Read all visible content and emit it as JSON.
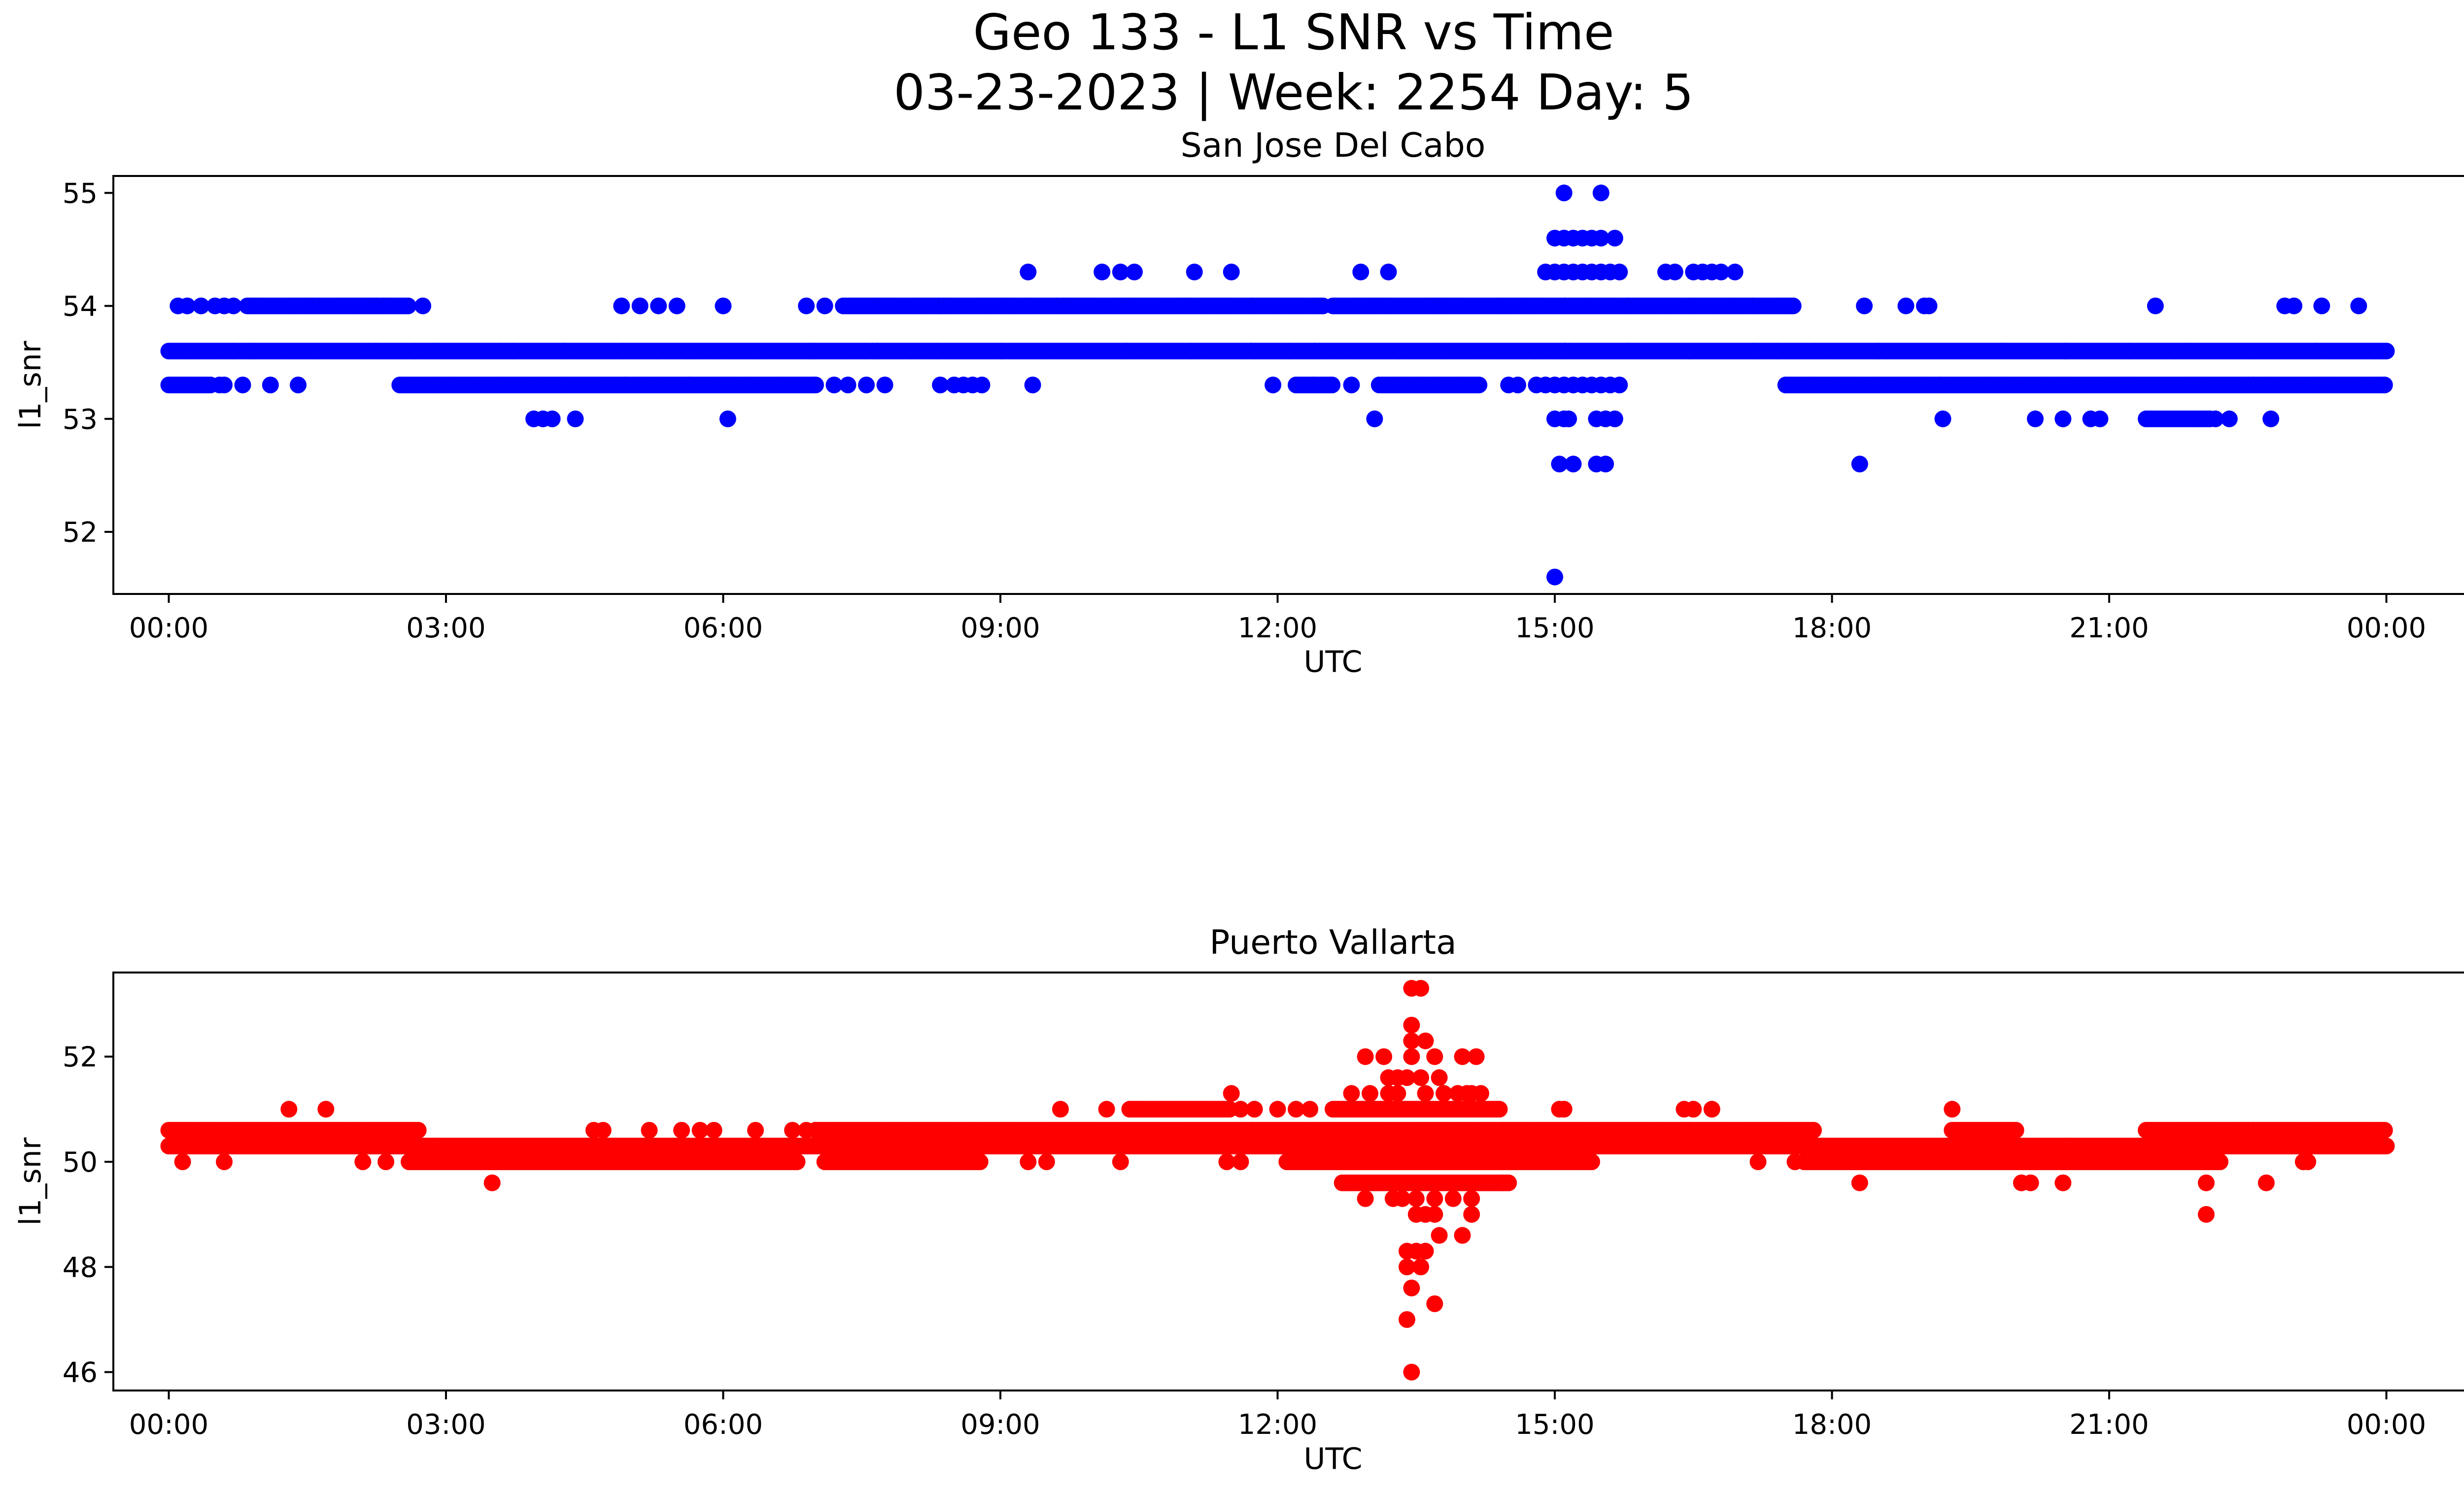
{
  "figure": {
    "title_line1": "Geo 133 - L1 SNR vs Time",
    "title_line2": "03-23-2023 | Week: 2254 Day: 5"
  },
  "chart_data": [
    {
      "type": "scatter",
      "title": "San Jose Del Cabo",
      "xlabel": "UTC",
      "ylabel": "l1_snr",
      "color": "#0000ff",
      "x_ticks": [
        "00:00",
        "03:00",
        "06:00",
        "09:00",
        "12:00",
        "15:00",
        "18:00",
        "21:00",
        "00:00"
      ],
      "x_range_hours": [
        -0.6,
        25.8
      ],
      "ylim": [
        51.45,
        55.15
      ],
      "y_ticks": [
        52,
        53,
        54,
        55
      ],
      "grid": false,
      "series": [
        {
          "bands": [
            {
              "y": 53.6,
              "x_start": 0.0,
              "x_end": 24.0
            },
            {
              "y": 53.3,
              "x_start": 0.0,
              "x_end": 0.45
            },
            {
              "y": 53.3,
              "x_start": 2.5,
              "x_end": 7.0
            },
            {
              "y": 53.3,
              "x_start": 12.2,
              "x_end": 12.6
            },
            {
              "y": 53.3,
              "x_start": 13.1,
              "x_end": 14.2
            },
            {
              "y": 53.3,
              "x_start": 17.5,
              "x_end": 24.0
            },
            {
              "y": 54.0,
              "x_start": 0.85,
              "x_end": 2.6
            },
            {
              "y": 54.0,
              "x_start": 7.3,
              "x_end": 12.5
            },
            {
              "y": 54.0,
              "x_start": 12.6,
              "x_end": 17.6
            },
            {
              "y": 53.0,
              "x_start": 21.4,
              "x_end": 22.1
            }
          ],
          "points": [
            [
              0.1,
              54.0
            ],
            [
              0.2,
              54.0
            ],
            [
              0.35,
              54.0
            ],
            [
              0.5,
              54.0
            ],
            [
              0.6,
              54.0
            ],
            [
              0.7,
              54.0
            ],
            [
              2.75,
              54.0
            ],
            [
              4.9,
              54.0
            ],
            [
              5.1,
              54.0
            ],
            [
              5.3,
              54.0
            ],
            [
              5.5,
              54.0
            ],
            [
              6.0,
              54.0
            ],
            [
              6.9,
              54.0
            ],
            [
              7.1,
              54.0
            ],
            [
              9.3,
              54.3
            ],
            [
              10.1,
              54.3
            ],
            [
              10.3,
              54.3
            ],
            [
              10.45,
              54.3
            ],
            [
              11.1,
              54.3
            ],
            [
              11.5,
              54.3
            ],
            [
              12.9,
              54.3
            ],
            [
              13.2,
              54.3
            ],
            [
              16.2,
              54.3
            ],
            [
              16.3,
              54.3
            ],
            [
              16.5,
              54.3
            ],
            [
              16.6,
              54.3
            ],
            [
              16.7,
              54.3
            ],
            [
              16.8,
              54.3
            ],
            [
              16.95,
              54.3
            ],
            [
              18.35,
              54.0
            ],
            [
              18.8,
              54.0
            ],
            [
              19.0,
              54.0
            ],
            [
              19.05,
              54.0
            ],
            [
              21.5,
              54.0
            ],
            [
              22.9,
              54.0
            ],
            [
              23.0,
              54.0
            ],
            [
              23.3,
              54.0
            ],
            [
              23.7,
              54.0
            ],
            [
              0.55,
              53.3
            ],
            [
              0.6,
              53.3
            ],
            [
              0.8,
              53.3
            ],
            [
              1.1,
              53.3
            ],
            [
              1.4,
              53.3
            ],
            [
              7.2,
              53.3
            ],
            [
              7.35,
              53.3
            ],
            [
              7.55,
              53.3
            ],
            [
              7.75,
              53.3
            ],
            [
              8.35,
              53.3
            ],
            [
              8.5,
              53.3
            ],
            [
              8.6,
              53.3
            ],
            [
              8.7,
              53.3
            ],
            [
              8.8,
              53.3
            ],
            [
              9.35,
              53.3
            ],
            [
              11.95,
              53.3
            ],
            [
              12.8,
              53.3
            ],
            [
              14.5,
              53.3
            ],
            [
              14.6,
              53.3
            ],
            [
              14.8,
              53.3
            ],
            [
              3.95,
              53.0
            ],
            [
              4.05,
              53.0
            ],
            [
              4.15,
              53.0
            ],
            [
              4.4,
              53.0
            ],
            [
              6.05,
              53.0
            ],
            [
              13.05,
              53.0
            ],
            [
              14.9,
              53.3
            ],
            [
              15.0,
              53.3
            ],
            [
              15.1,
              53.3
            ],
            [
              15.2,
              53.3
            ],
            [
              15.3,
              53.3
            ],
            [
              15.4,
              53.3
            ],
            [
              15.5,
              53.3
            ],
            [
              15.6,
              53.3
            ],
            [
              15.7,
              53.3
            ],
            [
              15.0,
              53.0
            ],
            [
              15.1,
              53.0
            ],
            [
              15.15,
              53.0
            ],
            [
              15.45,
              53.0
            ],
            [
              15.55,
              53.0
            ],
            [
              15.65,
              53.0
            ],
            [
              15.05,
              52.6
            ],
            [
              15.2,
              52.6
            ],
            [
              15.45,
              52.6
            ],
            [
              15.55,
              52.6
            ],
            [
              15.0,
              51.6
            ],
            [
              14.9,
              54.3
            ],
            [
              15.0,
              54.3
            ],
            [
              15.1,
              54.3
            ],
            [
              15.2,
              54.3
            ],
            [
              15.3,
              54.3
            ],
            [
              15.4,
              54.3
            ],
            [
              15.5,
              54.3
            ],
            [
              15.6,
              54.3
            ],
            [
              15.7,
              54.3
            ],
            [
              15.0,
              54.6
            ],
            [
              15.1,
              54.6
            ],
            [
              15.2,
              54.6
            ],
            [
              15.3,
              54.6
            ],
            [
              15.4,
              54.6
            ],
            [
              15.5,
              54.6
            ],
            [
              15.65,
              54.6
            ],
            [
              15.1,
              55.0
            ],
            [
              15.5,
              55.0
            ],
            [
              18.3,
              52.6
            ],
            [
              19.2,
              53.0
            ],
            [
              20.2,
              53.0
            ],
            [
              20.5,
              53.0
            ],
            [
              20.8,
              53.0
            ],
            [
              20.9,
              53.0
            ],
            [
              22.15,
              53.0
            ],
            [
              22.3,
              53.0
            ],
            [
              22.75,
              53.0
            ]
          ]
        }
      ]
    },
    {
      "type": "scatter",
      "title": "Puerto Vallarta",
      "xlabel": "UTC",
      "ylabel": "l1_snr",
      "color": "#ff0000",
      "x_ticks": [
        "00:00",
        "03:00",
        "06:00",
        "09:00",
        "12:00",
        "15:00",
        "18:00",
        "21:00",
        "00:00"
      ],
      "x_range_hours": [
        -0.6,
        25.8
      ],
      "ylim": [
        45.65,
        53.6
      ],
      "y_ticks": [
        46,
        48,
        50,
        52
      ],
      "grid": false,
      "series": [
        {
          "bands": [
            {
              "y": 50.6,
              "x_start": 0.0,
              "x_end": 2.7
            },
            {
              "y": 50.3,
              "x_start": 0.0,
              "x_end": 24.0
            },
            {
              "y": 50.0,
              "x_start": 2.6,
              "x_end": 6.8
            },
            {
              "y": 50.6,
              "x_start": 7.0,
              "x_end": 17.8
            },
            {
              "y": 50.0,
              "x_start": 7.1,
              "x_end": 8.8
            },
            {
              "y": 50.0,
              "x_start": 12.1,
              "x_end": 15.4
            },
            {
              "y": 50.0,
              "x_start": 17.7,
              "x_end": 22.2
            },
            {
              "y": 50.6,
              "x_start": 19.3,
              "x_end": 20.0
            },
            {
              "y": 50.6,
              "x_start": 21.4,
              "x_end": 24.0
            },
            {
              "y": 51.0,
              "x_start": 10.4,
              "x_end": 11.5
            },
            {
              "y": 51.0,
              "x_start": 12.6,
              "x_end": 14.4
            },
            {
              "y": 49.6,
              "x_start": 12.7,
              "x_end": 14.5
            }
          ],
          "points": [
            [
              0.15,
              50.0
            ],
            [
              0.6,
              50.0
            ],
            [
              1.3,
              51.0
            ],
            [
              1.7,
              51.0
            ],
            [
              2.1,
              50.0
            ],
            [
              2.35,
              50.0
            ],
            [
              3.5,
              49.6
            ],
            [
              4.6,
              50.6
            ],
            [
              4.7,
              50.6
            ],
            [
              5.2,
              50.6
            ],
            [
              5.55,
              50.6
            ],
            [
              5.75,
              50.6
            ],
            [
              5.9,
              50.6
            ],
            [
              6.35,
              50.6
            ],
            [
              6.75,
              50.6
            ],
            [
              6.9,
              50.6
            ],
            [
              9.3,
              50.0
            ],
            [
              9.5,
              50.0
            ],
            [
              9.65,
              51.0
            ],
            [
              10.15,
              51.0
            ],
            [
              10.3,
              50.0
            ],
            [
              11.5,
              51.3
            ],
            [
              11.6,
              51.0
            ],
            [
              11.75,
              51.0
            ],
            [
              11.45,
              50.0
            ],
            [
              11.6,
              50.0
            ],
            [
              12.2,
              51.0
            ],
            [
              12.35,
              51.0
            ],
            [
              12.0,
              51.0
            ],
            [
              16.4,
              51.0
            ],
            [
              16.5,
              51.0
            ],
            [
              16.7,
              51.0
            ],
            [
              17.2,
              50.0
            ],
            [
              17.6,
              50.0
            ],
            [
              18.3,
              49.6
            ],
            [
              19.3,
              51.0
            ],
            [
              20.05,
              49.6
            ],
            [
              20.15,
              49.6
            ],
            [
              20.5,
              49.6
            ],
            [
              22.05,
              49.6
            ],
            [
              22.05,
              49.0
            ],
            [
              22.7,
              49.6
            ],
            [
              23.1,
              50.0
            ],
            [
              23.15,
              50.0
            ],
            [
              15.05,
              51.0
            ],
            [
              15.1,
              51.0
            ],
            [
              15.0,
              50.0
            ],
            [
              15.2,
              50.0
            ],
            [
              15.35,
              50.0
            ],
            [
              12.8,
              51.3
            ],
            [
              13.0,
              51.3
            ],
            [
              13.2,
              51.3
            ],
            [
              13.3,
              51.3
            ],
            [
              13.6,
              51.3
            ],
            [
              13.8,
              51.3
            ],
            [
              13.95,
              51.3
            ],
            [
              14.05,
              51.3
            ],
            [
              14.1,
              51.3
            ],
            [
              14.2,
              51.3
            ],
            [
              13.2,
              51.6
            ],
            [
              13.3,
              51.6
            ],
            [
              13.4,
              51.6
            ],
            [
              13.55,
              51.6
            ],
            [
              13.75,
              51.6
            ],
            [
              12.95,
              52.0
            ],
            [
              13.15,
              52.0
            ],
            [
              13.45,
              52.0
            ],
            [
              13.7,
              52.0
            ],
            [
              14.0,
              52.0
            ],
            [
              14.15,
              52.0
            ],
            [
              13.45,
              52.3
            ],
            [
              13.6,
              52.3
            ],
            [
              13.45,
              52.6
            ],
            [
              13.45,
              53.3
            ],
            [
              13.55,
              53.3
            ],
            [
              12.95,
              49.3
            ],
            [
              13.25,
              49.3
            ],
            [
              13.35,
              49.3
            ],
            [
              13.5,
              49.3
            ],
            [
              13.7,
              49.3
            ],
            [
              13.9,
              49.3
            ],
            [
              14.1,
              49.3
            ],
            [
              13.5,
              49.0
            ],
            [
              13.6,
              49.0
            ],
            [
              13.7,
              49.0
            ],
            [
              14.1,
              49.0
            ],
            [
              13.75,
              48.6
            ],
            [
              14.0,
              48.6
            ],
            [
              13.4,
              48.3
            ],
            [
              13.5,
              48.3
            ],
            [
              13.6,
              48.3
            ],
            [
              13.4,
              48.0
            ],
            [
              13.55,
              48.0
            ],
            [
              13.45,
              47.6
            ],
            [
              13.7,
              47.3
            ],
            [
              13.4,
              47.0
            ],
            [
              13.45,
              46.0
            ]
          ]
        }
      ]
    }
  ]
}
